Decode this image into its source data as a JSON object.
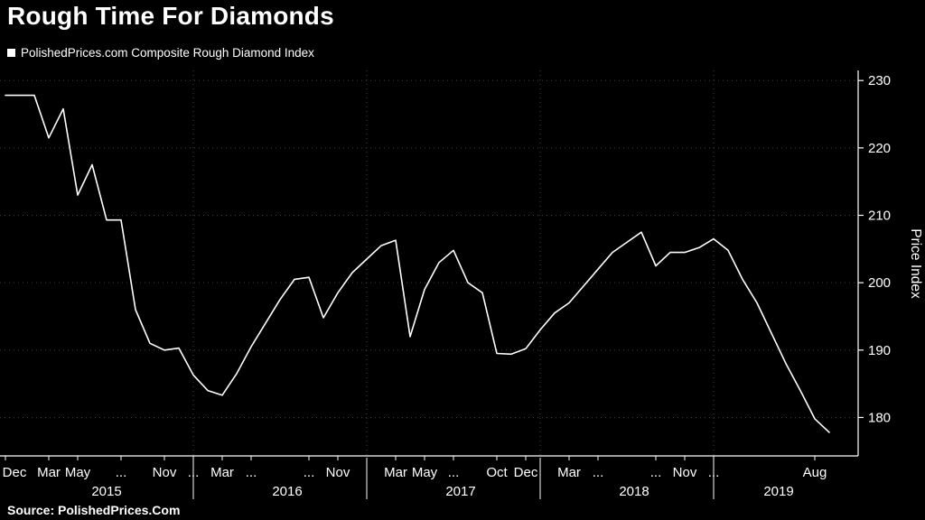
{
  "header": {
    "title": "Rough Time For Diamonds",
    "legend_label": "PolishedPrices.com Composite Rough Diamond Index"
  },
  "footer": {
    "source": "Source: PolishedPrices.Com"
  },
  "chart_data": {
    "type": "line",
    "title": "Rough Time For Diamonds",
    "legend": "PolishedPrices.com Composite Rough Diamond Index",
    "ylabel": "Price Index",
    "frequency": "monthly",
    "x_range": [
      "2014-12",
      "2019-09"
    ],
    "values": [
      227.8,
      227.8,
      227.8,
      221.5,
      225.8,
      213.0,
      217.5,
      209.3,
      209.3,
      196.0,
      191.0,
      190.0,
      190.3,
      186.3,
      184.0,
      183.3,
      186.5,
      190.5,
      194.0,
      197.5,
      200.5,
      200.8,
      194.8,
      198.5,
      201.5,
      203.5,
      205.5,
      206.3,
      192.0,
      199.0,
      203.0,
      204.8,
      200.0,
      198.5,
      189.5,
      189.4,
      190.2,
      193.0,
      195.5,
      197.0,
      199.5,
      202.0,
      204.5,
      206.0,
      207.5,
      202.5,
      204.5,
      204.5,
      205.2,
      206.5,
      204.8,
      200.5,
      197.0,
      192.5,
      188.0,
      184.0,
      179.8,
      177.8
    ],
    "y_ticks": [
      180,
      190,
      200,
      210,
      220,
      230
    ],
    "ylim": [
      174.3,
      231.5
    ],
    "x_ticks": [
      {
        "label": "Dec",
        "m": 0
      },
      {
        "label": "Mar",
        "m": 3
      },
      {
        "label": "May",
        "m": 5
      },
      {
        "label": "...",
        "m": 8
      },
      {
        "label": "Nov",
        "m": 11
      },
      {
        "label": "...",
        "m": 13
      },
      {
        "label": "Mar",
        "m": 15
      },
      {
        "label": "...",
        "m": 17
      },
      {
        "label": "...",
        "m": 21
      },
      {
        "label": "Nov",
        "m": 23
      },
      {
        "label": "Mar",
        "m": 27
      },
      {
        "label": "May",
        "m": 29
      },
      {
        "label": "...",
        "m": 31
      },
      {
        "label": "Oct",
        "m": 34
      },
      {
        "label": "Dec",
        "m": 36
      },
      {
        "label": "Mar",
        "m": 39
      },
      {
        "label": "...",
        "m": 41
      },
      {
        "label": "...",
        "m": 45
      },
      {
        "label": "Nov",
        "m": 47
      },
      {
        "label": "...",
        "m": 49
      },
      {
        "label": "Aug",
        "m": 56
      }
    ],
    "year_labels": [
      {
        "label": "2015",
        "m": 7
      },
      {
        "label": "2016",
        "m": 19.5
      },
      {
        "label": "2017",
        "m": 31.5
      },
      {
        "label": "2018",
        "m": 43.5
      },
      {
        "label": "2019",
        "m": 53.5
      }
    ],
    "year_separators_m": [
      13,
      25,
      37,
      49
    ],
    "colors": {
      "background": "#000000",
      "line": "#ffffff",
      "text": "#ffffff",
      "grid": "#3f3f3f"
    }
  }
}
